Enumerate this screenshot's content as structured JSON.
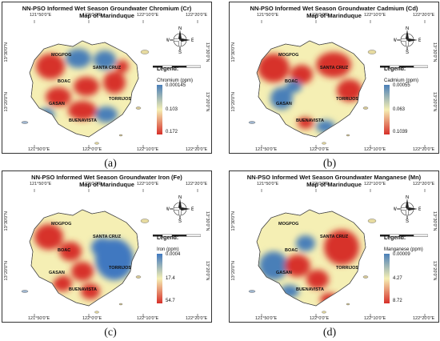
{
  "panels": [
    {
      "id": "a",
      "title1": "NN-PSO Informed Wet Season Groundwater Chromium (Cr)",
      "title2": "Map of Marinduque",
      "legend_title": "Legend:",
      "legend_label": "Chromium (ppm)",
      "legend_values": [
        "0.000145",
        "0.103",
        "0.172"
      ],
      "ramp": [
        "#4a7fb8",
        "#f5efb4",
        "#d7302a"
      ],
      "caption": "(a)"
    },
    {
      "id": "b",
      "title1": "NN-PSO Informed Wet Season Groundwater Cadmium (Cd)",
      "title2": "Map of Marinduque",
      "legend_title": "Legend:",
      "legend_label": "Cadmium (ppm)",
      "legend_values": [
        "0.00055",
        "0.063",
        "0.1039"
      ],
      "ramp": [
        "#4a7fb8",
        "#f5efb4",
        "#d7302a"
      ],
      "caption": "(b)"
    },
    {
      "id": "c",
      "title1": "NN-PSO Informed Wet Season Groundwater Iron (Fe)",
      "title2": "Map of Marinduque",
      "legend_title": "Legend:",
      "legend_label": "Iron (ppm)",
      "legend_values": [
        "0.0004",
        "17.4",
        "54.7"
      ],
      "ramp": [
        "#3f78c0",
        "#f5efb4",
        "#d7302a"
      ],
      "caption": "(c)"
    },
    {
      "id": "d",
      "title1": "NN-PSO Informed Wet Season Groundwater Manganese (Mn)",
      "title2": "Map of Marinduque",
      "legend_title": "Legend:",
      "legend_label": "Manganese (ppm)",
      "legend_values": [
        "0.00009",
        "4.27",
        "8.72"
      ],
      "ramp": [
        "#4a7fb8",
        "#f5efb4",
        "#d7302a"
      ],
      "caption": "(d)"
    }
  ],
  "towns": [
    "MOGPOG",
    "SANTA CRUZ",
    "BOAC",
    "TORRIJOS",
    "GASAN",
    "BUENAVISTA"
  ],
  "x_ticks": [
    "121°50'0\"E",
    "122°0'0\"E",
    "122°10'0\"E",
    "122°20'0\"E"
  ],
  "y_ticks": [
    "13°30'0\"N",
    "13°20'0\"N"
  ],
  "compass": {
    "n": "N",
    "s": "S",
    "e": "E",
    "w": "W"
  }
}
